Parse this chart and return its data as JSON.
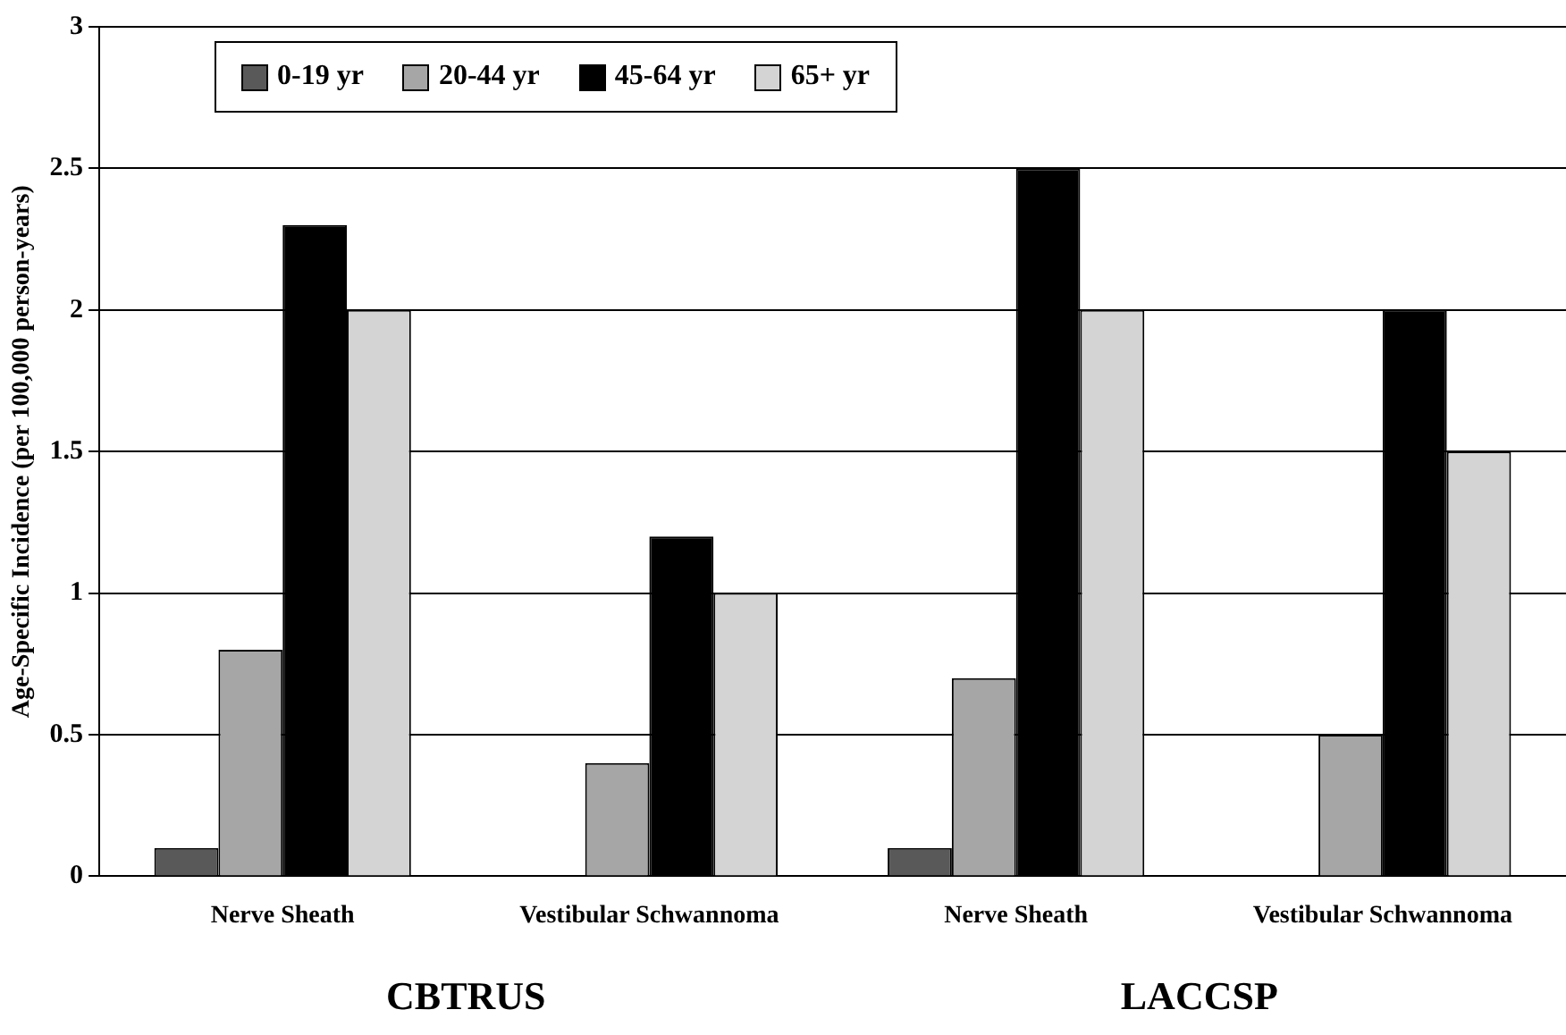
{
  "chart_data": {
    "type": "bar",
    "ylabel": "Age-Specific Incidence (per 100,000 person-years)",
    "categories": [
      "Nerve Sheath",
      "Vestibular Schwannoma",
      "Nerve Sheath",
      "Vestibular Schwannoma"
    ],
    "series": [
      {
        "name": "0-19 yr",
        "color": "#595959",
        "values": [
          0.1,
          0,
          0.1,
          0
        ]
      },
      {
        "name": "20-44 yr",
        "color": "#a6a6a6",
        "values": [
          0.8,
          0.4,
          0.7,
          0.5
        ]
      },
      {
        "name": "45-64 yr",
        "color": "#000000",
        "values": [
          2.3,
          1.2,
          2.5,
          2.0
        ]
      },
      {
        "name": "65+ yr",
        "color": "#d4d4d4",
        "values": [
          2.0,
          1.0,
          2.0,
          1.5
        ]
      }
    ],
    "ylim": [
      0,
      3
    ],
    "yticks": [
      0,
      0.5,
      1,
      1.5,
      2,
      2.5,
      3
    ],
    "grid": "y",
    "legend": "top left",
    "annotations": [
      "CBTRUS",
      "LACCSP"
    ]
  }
}
